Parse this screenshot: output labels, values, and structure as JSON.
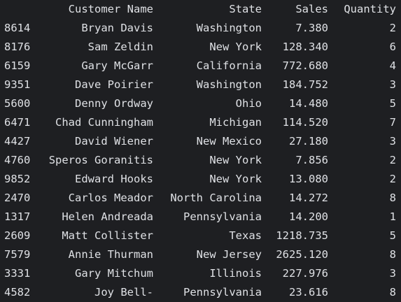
{
  "output": {
    "columns": {
      "customer_name": "Customer Name",
      "state": "State",
      "sales": "Sales",
      "quantity": "Quantity"
    },
    "rows": [
      {
        "index": "8614",
        "customer_name": "Bryan Davis",
        "state": "Washington",
        "sales": "7.380",
        "quantity": "2"
      },
      {
        "index": "8176",
        "customer_name": "Sam Zeldin",
        "state": "New York",
        "sales": "128.340",
        "quantity": "6"
      },
      {
        "index": "6159",
        "customer_name": "Gary McGarr",
        "state": "California",
        "sales": "772.680",
        "quantity": "4"
      },
      {
        "index": "9351",
        "customer_name": "Dave Poirier",
        "state": "Washington",
        "sales": "184.752",
        "quantity": "3"
      },
      {
        "index": "5600",
        "customer_name": "Denny Ordway",
        "state": "Ohio",
        "sales": "14.480",
        "quantity": "5"
      },
      {
        "index": "6471",
        "customer_name": "Chad Cunningham",
        "state": "Michigan",
        "sales": "114.520",
        "quantity": "7"
      },
      {
        "index": "4427",
        "customer_name": "David Wiener",
        "state": "New Mexico",
        "sales": "27.180",
        "quantity": "3"
      },
      {
        "index": "4760",
        "customer_name": "Speros Goranitis",
        "state": "New York",
        "sales": "7.856",
        "quantity": "2"
      },
      {
        "index": "9852",
        "customer_name": "Edward Hooks",
        "state": "New York",
        "sales": "13.080",
        "quantity": "2"
      },
      {
        "index": "2470",
        "customer_name": "Carlos Meador",
        "state": "North Carolina",
        "sales": "14.272",
        "quantity": "8"
      },
      {
        "index": "1317",
        "customer_name": "Helen Andreada",
        "state": "Pennsylvania",
        "sales": "14.200",
        "quantity": "1"
      },
      {
        "index": "2609",
        "customer_name": "Matt Collister",
        "state": "Texas",
        "sales": "1218.735",
        "quantity": "5"
      },
      {
        "index": "7579",
        "customer_name": "Annie Thurman",
        "state": "New Jersey",
        "sales": "2625.120",
        "quantity": "8"
      },
      {
        "index": "3331",
        "customer_name": "Gary Mitchum",
        "state": "Illinois",
        "sales": "227.976",
        "quantity": "3"
      },
      {
        "index": "4582",
        "customer_name": "Joy Bell-",
        "state": "Pennsylvania",
        "sales": "23.616",
        "quantity": "8"
      }
    ]
  },
  "colors": {
    "background": "#1e1f22",
    "text": "#dfe1e5"
  }
}
